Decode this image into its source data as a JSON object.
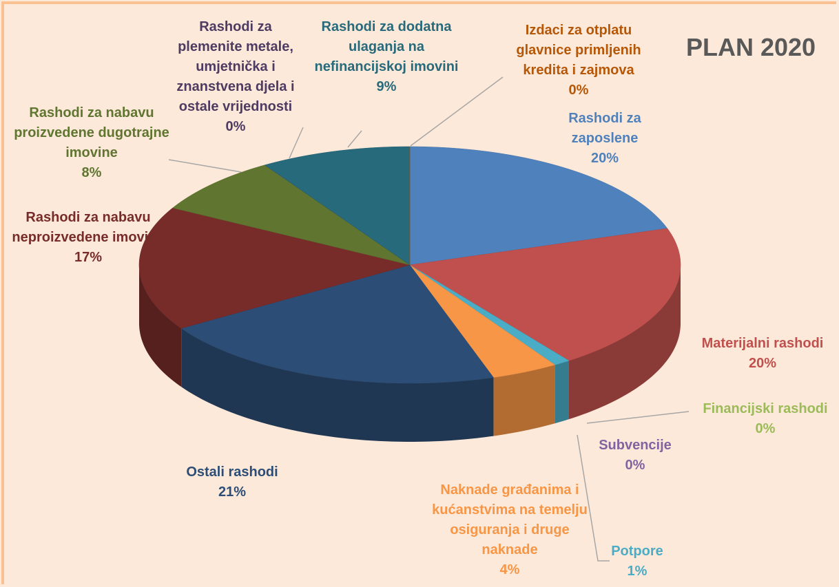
{
  "chart_data": {
    "type": "pie",
    "title": "PLAN 2020",
    "categories": [
      "Rashodi za zaposlene",
      "Materijalni rashodi",
      "Financijski rashodi",
      "Subvencije",
      "Potpore",
      "Naknade građanima i kućanstvima na temelju osiguranja i druge naknade",
      "Ostali rashodi",
      "Rashodi za nabavu neproizvedene imovine",
      "Rashodi za nabavu proizvedene dugotrajne imovine",
      "Rashodi za plemenite metale, umjetnička i znanstvena djela i ostale vrijednosti",
      "Rashodi za dodatna ulaganja na nefinancijskoj imovini",
      "Izdaci za otplatu glavnice primljenih kredita i zajmova"
    ],
    "values": [
      20,
      20,
      0,
      0,
      1,
      4,
      21,
      17,
      8,
      0,
      9,
      0
    ],
    "value_labels": [
      "20%",
      "20%",
      "0%",
      "0%",
      "1%",
      "4%",
      "21%",
      "17%",
      "8%",
      "0%",
      "9%",
      "0%"
    ],
    "colors": [
      "#4f81bd",
      "#c0504d",
      "#9bbb59",
      "#8064a2",
      "#4bacc6",
      "#f79646",
      "#2c4d75",
      "#772c2a",
      "#5f7530",
      "#4d3b62",
      "#276a7c",
      "#b65708"
    ]
  }
}
